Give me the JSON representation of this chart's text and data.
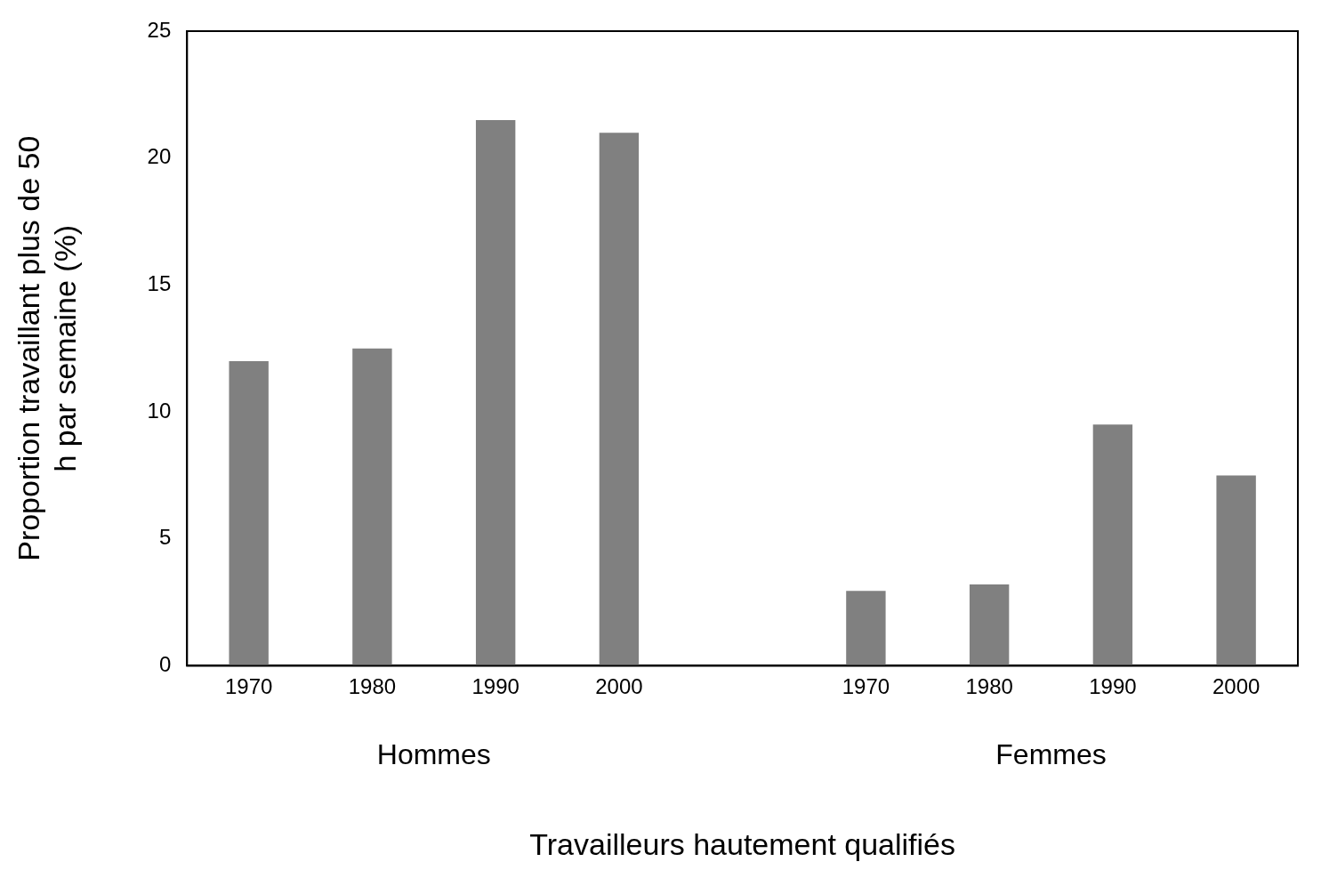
{
  "chart_data": {
    "type": "bar",
    "xlabel": "Travailleurs hautement qualifiés",
    "ylabel": "Proportion travaillant plus de 50 h par semaine (%)",
    "categories": [
      "1970",
      "1980",
      "1990",
      "2000",
      null,
      "1970",
      "1980",
      "1990",
      "2000"
    ],
    "values": [
      12,
      12.5,
      21.5,
      21,
      null,
      2.95,
      3.2,
      9.5,
      7.5
    ],
    "color": "#808080",
    "ylim": [
      0,
      25
    ],
    "yticks": [
      0,
      5,
      10,
      15,
      20,
      25
    ],
    "grid": false,
    "legend": false,
    "annotations": [
      "Hommes",
      "Femmes"
    ]
  }
}
